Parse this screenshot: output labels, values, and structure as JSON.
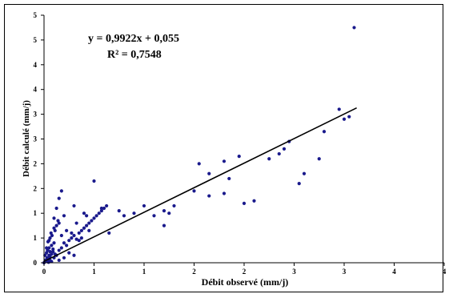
{
  "chart_data": {
    "type": "scatter",
    "xlabel": "Débit observé (mm/j)",
    "ylabel": "Débit calculé (mm/j)",
    "xlim": [
      0,
      8
    ],
    "ylim": [
      0,
      10
    ],
    "x_tick_labels": [
      "0",
      "1",
      "1",
      "2",
      "2",
      "3",
      "3",
      "4",
      "4"
    ],
    "y_tick_labels": [
      "0",
      "1",
      "1",
      "2",
      "2",
      "3",
      "3",
      "4",
      "4",
      "5",
      "5"
    ],
    "annotations": {
      "equation": "y = 0,9922x + 0,055",
      "r2": "R² = 0,7548"
    },
    "point_color": "#1a1a8c",
    "trendline": {
      "slope": 0.9922,
      "intercept": 0.055,
      "x_start": 0,
      "x_end": 6.25
    },
    "points": [
      [
        0.0,
        0.0
      ],
      [
        0.02,
        0.05
      ],
      [
        0.03,
        0.1
      ],
      [
        0.05,
        0.08
      ],
      [
        0.06,
        0.2
      ],
      [
        0.08,
        0.15
      ],
      [
        0.1,
        0.3
      ],
      [
        0.12,
        0.25
      ],
      [
        0.05,
        0.4
      ],
      [
        0.07,
        0.5
      ],
      [
        0.1,
        0.6
      ],
      [
        0.12,
        0.45
      ],
      [
        0.15,
        0.7
      ],
      [
        0.18,
        0.55
      ],
      [
        0.2,
        0.8
      ],
      [
        0.15,
        0.35
      ],
      [
        0.1,
        0.9
      ],
      [
        0.12,
        1.0
      ],
      [
        0.14,
        1.2
      ],
      [
        0.16,
        1.1
      ],
      [
        0.2,
        1.4
      ],
      [
        0.22,
        1.3
      ],
      [
        0.25,
        1.5
      ],
      [
        0.28,
        1.7
      ],
      [
        0.3,
        1.6
      ],
      [
        0.25,
        0.3
      ],
      [
        0.3,
        0.5
      ],
      [
        0.35,
        0.6
      ],
      [
        0.4,
        0.8
      ],
      [
        0.45,
        0.7
      ],
      [
        0.5,
        0.9
      ],
      [
        0.55,
        1.0
      ],
      [
        0.6,
        1.1
      ],
      [
        0.65,
        0.95
      ],
      [
        0.7,
        1.2
      ],
      [
        0.75,
        1.3
      ],
      [
        0.8,
        1.4
      ],
      [
        0.85,
        1.5
      ],
      [
        0.9,
        1.6
      ],
      [
        0.95,
        1.7
      ],
      [
        1.0,
        1.8
      ],
      [
        1.05,
        1.9
      ],
      [
        1.1,
        2.0
      ],
      [
        1.15,
        2.1
      ],
      [
        1.2,
        2.2
      ],
      [
        1.25,
        2.3
      ],
      [
        0.3,
        2.6
      ],
      [
        0.35,
        2.9
      ],
      [
        0.25,
        2.2
      ],
      [
        0.2,
        1.8
      ],
      [
        0.4,
        0.2
      ],
      [
        0.5,
        0.4
      ],
      [
        0.6,
        0.3
      ],
      [
        0.35,
        1.1
      ],
      [
        0.45,
        1.3
      ],
      [
        0.55,
        1.2
      ],
      [
        0.65,
        1.6
      ],
      [
        0.75,
        1.0
      ],
      [
        0.85,
        1.9
      ],
      [
        0.15,
        0.05
      ],
      [
        0.3,
        0.1
      ],
      [
        0.05,
        0.6
      ],
      [
        0.08,
        0.85
      ],
      [
        0.02,
        0.3
      ],
      [
        1.0,
        3.3
      ],
      [
        1.3,
        1.2
      ],
      [
        1.5,
        2.1
      ],
      [
        2.6,
        2.3
      ],
      [
        3.6,
        2.8
      ],
      [
        3.7,
        3.4
      ],
      [
        5.1,
        3.2
      ],
      [
        5.2,
        3.6
      ],
      [
        5.5,
        4.2
      ],
      [
        5.9,
        6.2
      ],
      [
        6.0,
        5.8
      ],
      [
        6.1,
        5.9
      ],
      [
        2.4,
        2.1
      ],
      [
        2.5,
        2.0
      ],
      [
        4.0,
        2.4
      ],
      [
        4.2,
        2.5
      ],
      [
        2.0,
        2.3
      ],
      [
        2.2,
        1.9
      ],
      [
        3.1,
        4.0
      ],
      [
        3.3,
        3.6
      ],
      [
        3.0,
        2.9
      ],
      [
        4.5,
        4.2
      ],
      [
        4.8,
        4.6
      ],
      [
        4.9,
        4.9
      ],
      [
        6.2,
        9.5
      ],
      [
        0.7,
        0.9
      ],
      [
        0.9,
        1.3
      ],
      [
        1.15,
        2.2
      ],
      [
        0.4,
        1.9
      ],
      [
        0.6,
        2.3
      ],
      [
        0.8,
        2.0
      ],
      [
        0.1,
        0.15
      ],
      [
        0.12,
        0.1
      ],
      [
        0.2,
        0.2
      ],
      [
        0.22,
        0.35
      ],
      [
        0.18,
        0.45
      ],
      [
        3.6,
        4.1
      ],
      [
        3.9,
        4.3
      ],
      [
        4.7,
        4.4
      ],
      [
        5.6,
        5.3
      ],
      [
        2.4,
        1.5
      ],
      [
        3.3,
        2.7
      ],
      [
        1.6,
        1.9
      ],
      [
        1.8,
        2.0
      ],
      [
        0.05,
        0.05
      ],
      [
        0.09,
        0.02
      ]
    ]
  }
}
